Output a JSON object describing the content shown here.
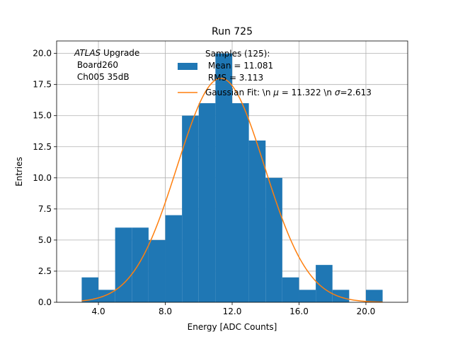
{
  "chart_data": {
    "type": "bar",
    "title": "Run 725",
    "xlabel": "Energy [ADC Counts]",
    "ylabel": "Entries",
    "xlim": [
      1.5,
      22.5
    ],
    "ylim": [
      0,
      21
    ],
    "grid": true,
    "legend_placement": "top-right",
    "xticks": [
      4.0,
      8.0,
      12.0,
      16.0,
      20.0
    ],
    "xtick_labels": [
      "4.0",
      "8.0",
      "12.0",
      "16.0",
      "20.0"
    ],
    "yticks": [
      0,
      2.5,
      5,
      7.5,
      10,
      12.5,
      15,
      17.5,
      20
    ],
    "ytick_labels": [
      "0.0",
      "2.5",
      "5.0",
      "7.5",
      "10.0",
      "12.5",
      "15.0",
      "17.5",
      "20.0"
    ],
    "histogram": {
      "name": "Samples (125):\n Mean = 11.081\n RMS = 3.113",
      "bin_edges": [
        3,
        4,
        5,
        6,
        7,
        8,
        9,
        10,
        11,
        12,
        13,
        14,
        15,
        16,
        17,
        18,
        19,
        20,
        21
      ],
      "counts": [
        2,
        1,
        6,
        6,
        5,
        7,
        15,
        16,
        20,
        16,
        13,
        10,
        2,
        1,
        3,
        1,
        0,
        1
      ],
      "color": "#1f77b4"
    },
    "fit": {
      "name": "Gaussian Fit: \\n $\\mu$ = 11.322 \\n $\\sigma$=2.613",
      "mu": 11.322,
      "sigma": 2.613,
      "amplitude": 18,
      "x_range": [
        3,
        21
      ],
      "color": "#ff7f0e"
    },
    "annotation": {
      "italic": "ATLAS",
      "rest": " Upgrade",
      "line2": " Board260",
      "line3": " Ch005 35dB"
    },
    "legend": {
      "hist_line1": "Samples (125):",
      "hist_line2": " Mean = 11.081",
      "hist_line3": " RMS = 3.113",
      "fit_prefix": "Gaussian Fit: \\n ",
      "fit_mu_sym": "μ",
      "fit_mid": " = 11.322 \\n ",
      "fit_sigma_sym": "σ",
      "fit_suffix": "=2.613"
    }
  }
}
